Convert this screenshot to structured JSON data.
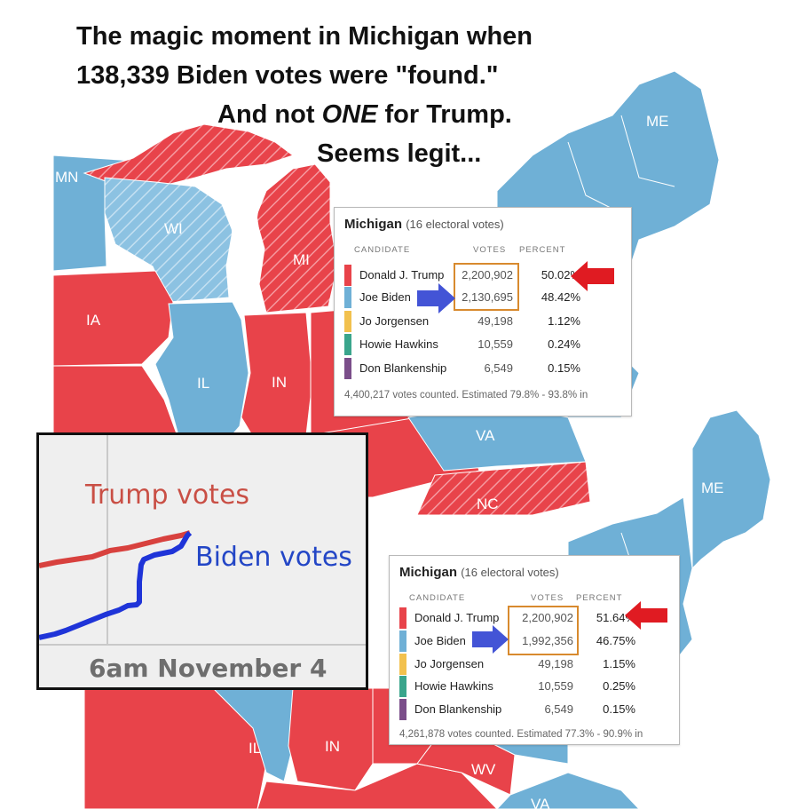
{
  "headline": {
    "line1": "The magic moment in Michigan when",
    "line2": "138,339 Biden votes were \"found.\"",
    "line3_pre": "And not ",
    "line3_em": "ONE",
    "line3_post": " for Trump.",
    "line4": "Seems legit..."
  },
  "map_top": {
    "labels": {
      "me": "ME",
      "mn": "MN",
      "wi": "WI",
      "mi": "MI",
      "ia": "IA",
      "il": "IL",
      "in": "IN",
      "va": "VA",
      "nc": "NC"
    }
  },
  "map_bottom": {
    "labels": {
      "me": "ME",
      "il": "IL",
      "in": "IN",
      "wv": "WV",
      "va": "VA"
    }
  },
  "colors": {
    "trump_red": "#e8434a",
    "biden_blue": "#6fb0d6",
    "jorgensen_yellow": "#f2c14e",
    "hawkins_green": "#3aa58c",
    "blankenship_purple": "#7b4e8a",
    "highlight_orange": "#d88a2e",
    "arrow_red": "#e01b22",
    "arrow_blue": "#4354d6"
  },
  "panel_common": {
    "col_candidate": "CANDIDATE",
    "col_votes": "VOTES",
    "col_percent": "PERCENT"
  },
  "panel_top": {
    "state": "Michigan",
    "electoral": "(16 electoral votes)",
    "rows": [
      {
        "name": "Donald J. Trump",
        "votes": "2,200,902",
        "percent": "50.02%"
      },
      {
        "name": "Joe Biden",
        "votes": "2,130,695",
        "percent": "48.42%"
      },
      {
        "name": "Jo Jorgensen",
        "votes": "49,198",
        "percent": "1.12%"
      },
      {
        "name": "Howie Hawkins",
        "votes": "10,559",
        "percent": "0.24%"
      },
      {
        "name": "Don Blankenship",
        "votes": "6,549",
        "percent": "0.15%"
      }
    ],
    "footer": "4,400,217 votes counted. Estimated 79.8% - 93.8% in"
  },
  "panel_bottom": {
    "state": "Michigan",
    "electoral": "(16 electoral votes)",
    "rows": [
      {
        "name": "Donald J. Trump",
        "votes": "2,200,902",
        "percent": "51.64%"
      },
      {
        "name": "Joe Biden",
        "votes": "1,992,356",
        "percent": "46.75%"
      },
      {
        "name": "Jo Jorgensen",
        "votes": "49,198",
        "percent": "1.15%"
      },
      {
        "name": "Howie Hawkins",
        "votes": "10,559",
        "percent": "0.25%"
      },
      {
        "name": "Don Blankenship",
        "votes": "6,549",
        "percent": "0.15%"
      }
    ],
    "footer": "4,261,878 votes counted. Estimated 77.3% - 90.9% in"
  },
  "inset": {
    "trump_label": "Trump votes",
    "biden_label": "Biden votes",
    "time_label": "6am November 4"
  }
}
